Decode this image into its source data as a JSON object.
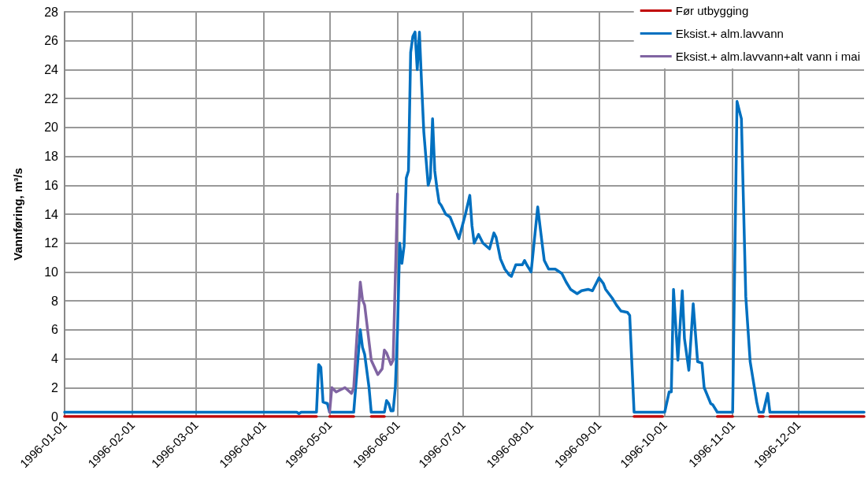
{
  "chart_data": {
    "type": "line",
    "ylabel": "Vannføring, m³/s",
    "xlim": [
      "1996-01-01",
      "1996-12-31"
    ],
    "xticks": [
      "1996-01-01",
      "1996-02-01",
      "1996-03-01",
      "1996-04-01",
      "1996-05-01",
      "1996-06-01",
      "1996-07-01",
      "1996-08-01",
      "1996-09-01",
      "1996-10-01",
      "1996-11-01",
      "1996-12-01"
    ],
    "ylim": [
      0,
      28
    ],
    "yticks": [
      0,
      2,
      4,
      6,
      8,
      10,
      12,
      14,
      16,
      18,
      20,
      22,
      24,
      26,
      28
    ],
    "grid": true,
    "legend": "top right",
    "marker": "none",
    "line_style": "solid",
    "series": [
      {
        "name": "Før utbygging",
        "color": "#c00000",
        "x": [
          "1996-01-01",
          "1996-04-25",
          "1996-04-26",
          "1996-05-01",
          "1996-05-12",
          "1996-05-13",
          "1996-05-20",
          "1996-05-26",
          "1996-05-27",
          "1996-09-17",
          "1996-09-30",
          "1996-10-01",
          "1996-10-25",
          "1996-11-01",
          "1996-11-02",
          "1996-11-13",
          "1996-11-15",
          "1996-11-16",
          "1996-11-18",
          "1996-12-31"
        ],
        "values": [
          0,
          0,
          null,
          0,
          0,
          null,
          0,
          0,
          null,
          0,
          0,
          null,
          0,
          0,
          null,
          0,
          0,
          null,
          0,
          0
        ]
      },
      {
        "name": "Eksist.+ alm.lavvann",
        "color": "#0070c0",
        "x": [
          "1996-01-01",
          "1996-04-16",
          "1996-04-17",
          "1996-04-18",
          "1996-04-25",
          "1996-04-26",
          "1996-04-27",
          "1996-04-28",
          "1996-04-30",
          "1996-05-01",
          "1996-05-12",
          "1996-05-15",
          "1996-05-16",
          "1996-05-17",
          "1996-05-19",
          "1996-05-20",
          "1996-05-26",
          "1996-05-27",
          "1996-05-28",
          "1996-05-29",
          "1996-05-30",
          "1996-05-31",
          "1996-06-01",
          "1996-06-02",
          "1996-06-03",
          "1996-06-04",
          "1996-06-05",
          "1996-06-06",
          "1996-06-07",
          "1996-06-08",
          "1996-06-09",
          "1996-06-10",
          "1996-06-11",
          "1996-06-12",
          "1996-06-13",
          "1996-06-15",
          "1996-06-16",
          "1996-06-17",
          "1996-06-18",
          "1996-06-19",
          "1996-06-20",
          "1996-06-21",
          "1996-06-23",
          "1996-06-25",
          "1996-06-29",
          "1996-07-02",
          "1996-07-04",
          "1996-07-05",
          "1996-07-06",
          "1996-07-08",
          "1996-07-10",
          "1996-07-13",
          "1996-07-15",
          "1996-07-16",
          "1996-07-18",
          "1996-07-20",
          "1996-07-22",
          "1996-07-23",
          "1996-07-25",
          "1996-07-28",
          "1996-07-29",
          "1996-07-30",
          "1996-08-01",
          "1996-08-04",
          "1996-08-06",
          "1996-08-07",
          "1996-08-09",
          "1996-08-12",
          "1996-08-15",
          "1996-08-17",
          "1996-08-19",
          "1996-08-22",
          "1996-08-24",
          "1996-08-27",
          "1996-08-29",
          "1996-09-01",
          "1996-09-03",
          "1996-09-04",
          "1996-09-07",
          "1996-09-09",
          "1996-09-11",
          "1996-09-14",
          "1996-09-15",
          "1996-09-17",
          "1996-10-01",
          "1996-10-03",
          "1996-10-04",
          "1996-10-05",
          "1996-10-07",
          "1996-10-09",
          "1996-10-10",
          "1996-10-12",
          "1996-10-14",
          "1996-10-16",
          "1996-10-18",
          "1996-10-19",
          "1996-10-22",
          "1996-10-23",
          "1996-10-25",
          "1996-11-01",
          "1996-11-03",
          "1996-11-05",
          "1996-11-07",
          "1996-11-09",
          "1996-11-12",
          "1996-11-13",
          "1996-11-15",
          "1996-11-17",
          "1996-11-18",
          "1996-12-31"
        ],
        "values": [
          0.3,
          0.3,
          0.2,
          0.3,
          0.3,
          3.6,
          3.4,
          1.0,
          0.9,
          0.3,
          0.3,
          6.0,
          4.8,
          4.3,
          2.0,
          0.3,
          0.3,
          1.1,
          0.9,
          0.4,
          0.4,
          2.0,
          6.0,
          12.0,
          10.6,
          11.8,
          16.5,
          17.0,
          25.2,
          26.3,
          26.6,
          24.0,
          26.6,
          23.0,
          19.7,
          16.0,
          16.5,
          20.6,
          17.0,
          15.8,
          14.8,
          14.6,
          14.0,
          13.8,
          12.3,
          14.0,
          15.3,
          13.2,
          12.0,
          12.6,
          12.0,
          11.6,
          12.7,
          12.4,
          10.9,
          10.2,
          9.8,
          9.7,
          10.5,
          10.5,
          10.8,
          10.5,
          10.0,
          14.5,
          12.0,
          10.8,
          10.2,
          10.2,
          9.9,
          9.3,
          8.8,
          8.5,
          8.7,
          8.8,
          8.7,
          9.6,
          9.2,
          8.8,
          8.2,
          7.7,
          7.3,
          7.2,
          7.0,
          0.3,
          0.3,
          1.7,
          1.7,
          8.8,
          3.9,
          8.7,
          5.4,
          3.2,
          7.8,
          3.8,
          3.7,
          2.0,
          0.9,
          0.8,
          0.3,
          0.3,
          21.8,
          20.6,
          8.3,
          3.8,
          1.0,
          0.3,
          0.3,
          1.6,
          0.3,
          0.3
        ]
      },
      {
        "name": "Eksist.+ alm.lavvann+alt vann i mai",
        "color": "#8064a2",
        "x": [
          "1996-05-01",
          "1996-05-02",
          "1996-05-04",
          "1996-05-08",
          "1996-05-11",
          "1996-05-12",
          "1996-05-15",
          "1996-05-16",
          "1996-05-17",
          "1996-05-20",
          "1996-05-23",
          "1996-05-25",
          "1996-05-26",
          "1996-05-27",
          "1996-05-29",
          "1996-05-30",
          "1996-06-01"
        ],
        "values": [
          0.3,
          2.0,
          1.7,
          2.0,
          1.6,
          2.0,
          9.3,
          8.1,
          7.7,
          3.9,
          2.9,
          3.3,
          4.6,
          4.4,
          3.6,
          3.9,
          15.4
        ]
      }
    ]
  }
}
